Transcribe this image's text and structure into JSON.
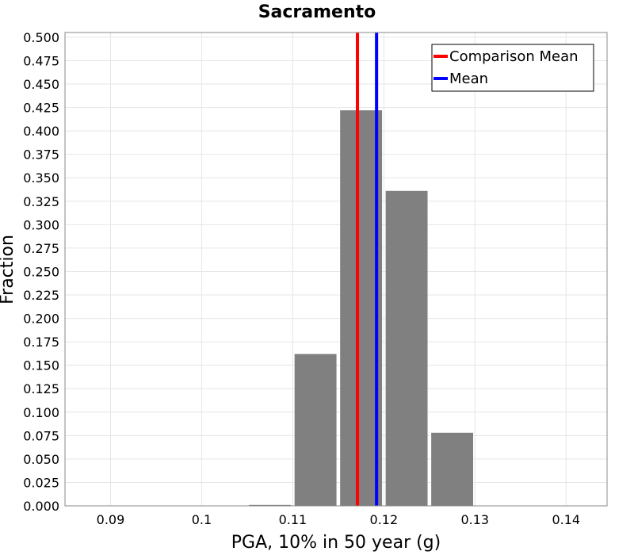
{
  "chart_data": {
    "type": "bar",
    "title": "Sacramento",
    "xlabel": "PGA, 10% in 50 year (g)",
    "ylabel": "Fraction",
    "xlim": [
      0.085,
      0.1445
    ],
    "ylim": [
      0,
      0.505
    ],
    "xticks": [
      0.09,
      0.1,
      0.11,
      0.12,
      0.13,
      0.14
    ],
    "xtick_labels": [
      "0.09",
      "0.1",
      "0.11",
      "0.12",
      "0.13",
      "0.14"
    ],
    "yticks": [
      0,
      0.025,
      0.05,
      0.075,
      0.1,
      0.125,
      0.15,
      0.175,
      0.2,
      0.225,
      0.25,
      0.275,
      0.3,
      0.325,
      0.35,
      0.375,
      0.4,
      0.425,
      0.45,
      0.475,
      0.5
    ],
    "ytick_labels": [
      "0.000",
      "0.025",
      "0.050",
      "0.075",
      "0.100",
      "0.125",
      "0.150",
      "0.175",
      "0.200",
      "0.225",
      "0.250",
      "0.275",
      "0.300",
      "0.325",
      "0.350",
      "0.375",
      "0.400",
      "0.425",
      "0.450",
      "0.475",
      "0.500"
    ],
    "bars": [
      {
        "x0": 0.1052,
        "x1": 0.1098,
        "value": 0.001
      },
      {
        "x0": 0.1102,
        "x1": 0.1148,
        "value": 0.162
      },
      {
        "x0": 0.1152,
        "x1": 0.1198,
        "value": 0.422
      },
      {
        "x0": 0.1202,
        "x1": 0.1248,
        "value": 0.336
      },
      {
        "x0": 0.1252,
        "x1": 0.1298,
        "value": 0.078
      }
    ],
    "bar_color": "#808080",
    "vlines": [
      {
        "name": "Comparison Mean",
        "x": 0.1171,
        "color": "#ff0000"
      },
      {
        "name": "Mean",
        "x": 0.1192,
        "color": "#0000ff"
      }
    ],
    "legend": [
      {
        "label": "Comparison Mean",
        "color": "#ff0000"
      },
      {
        "label": "Mean",
        "color": "#0000ff"
      }
    ],
    "legend_position": "top-right",
    "grid": true
  }
}
